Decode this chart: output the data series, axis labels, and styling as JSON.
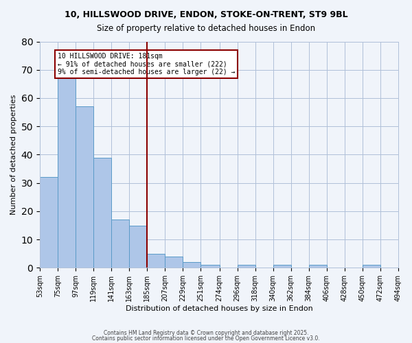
{
  "title1": "10, HILLSWOOD DRIVE, ENDON, STOKE-ON-TRENT, ST9 9BL",
  "title2": "Size of property relative to detached houses in Endon",
  "xlabel": "Distribution of detached houses by size in Endon",
  "ylabel": "Number of detached properties",
  "bin_labels": [
    "53sqm",
    "75sqm",
    "97sqm",
    "119sqm",
    "141sqm",
    "163sqm",
    "185sqm",
    "207sqm",
    "229sqm",
    "251sqm",
    "274sqm",
    "296sqm",
    "318sqm",
    "340sqm",
    "362sqm",
    "384sqm",
    "406sqm",
    "428sqm",
    "450sqm",
    "472sqm",
    "494sqm"
  ],
  "bin_edges": [
    53,
    75,
    97,
    119,
    141,
    163,
    185,
    207,
    229,
    251,
    274,
    296,
    318,
    340,
    362,
    384,
    406,
    428,
    450,
    472,
    494
  ],
  "bar_heights": [
    32,
    67,
    57,
    39,
    17,
    15,
    5,
    4,
    2,
    1,
    0,
    1,
    0,
    1,
    0,
    1,
    0,
    0,
    1,
    0
  ],
  "bar_color": "#aec6e8",
  "bar_edge_color": "#5a9ac8",
  "vline_x": 185,
  "vline_color": "#8b0000",
  "annotation_text": "10 HILLSWOOD DRIVE: 181sqm\n← 91% of detached houses are smaller (222)\n9% of semi-detached houses are larger (22) →",
  "annotation_box_color": "#ffffff",
  "annotation_border_color": "#8b0000",
  "ylim": [
    0,
    80
  ],
  "yticks": [
    0,
    10,
    20,
    30,
    40,
    50,
    60,
    70,
    80
  ],
  "footer1": "Contains HM Land Registry data © Crown copyright and database right 2025.",
  "footer2": "Contains public sector information licensed under the Open Government Licence v3.0.",
  "bg_color": "#f0f4fa"
}
